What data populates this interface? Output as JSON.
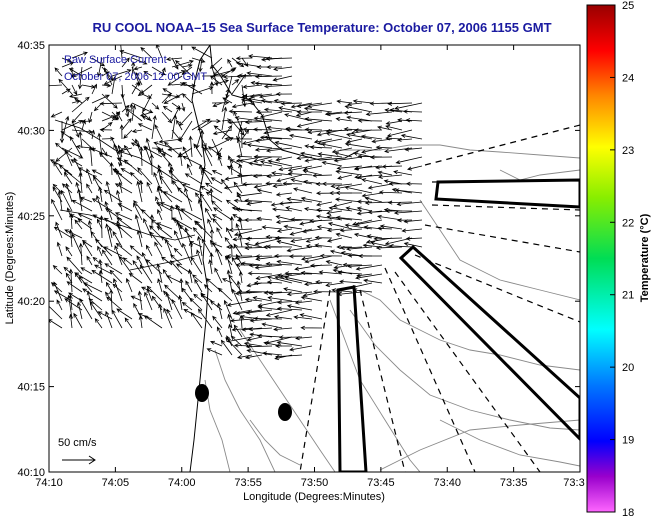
{
  "title": "RU COOL  NOAA–15  Sea Surface Temperature:  October 07, 2006 1155 GMT",
  "overlay": {
    "line1": "Raw Surface Current",
    "line2": "October 07, 2006 12:00 GMT"
  },
  "scale": {
    "label": "50 cm/s"
  },
  "x_axis": {
    "label": "Longitude (Degrees:Minutes)",
    "ticks": [
      "74:10",
      "74:05",
      "74:00",
      "73:55",
      "73:50",
      "73:45",
      "73:40",
      "73:35",
      "73:3"
    ]
  },
  "y_axis": {
    "label": "Latitude (Degrees:Minutes)",
    "ticks": [
      "40:35",
      "40:30",
      "40:25",
      "40:20",
      "40:15",
      "40:10"
    ]
  },
  "colorbar": {
    "label": "Temperature (°C)",
    "ticks": [
      "25",
      "24",
      "23",
      "22",
      "21",
      "20",
      "19",
      "18"
    ],
    "min": 18,
    "max": 25
  },
  "colors": {
    "title": "#1a1aa0",
    "frame": "#000000",
    "contour": "#8a8a8a",
    "vector": "#000000"
  }
}
